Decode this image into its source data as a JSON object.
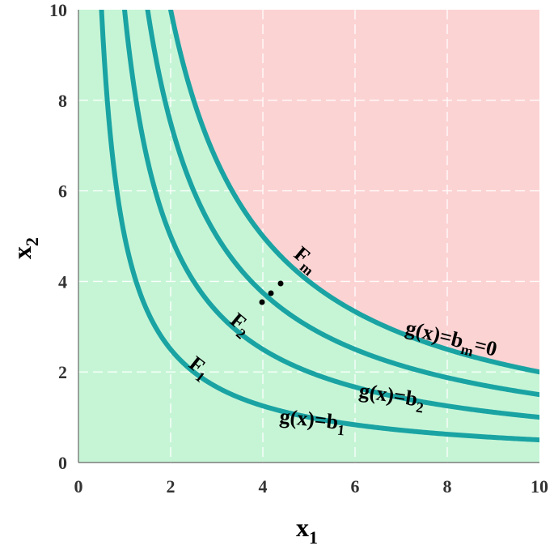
{
  "chart_data": {
    "type": "line",
    "title": "",
    "xlabel": "x",
    "xlabel_sub": "1",
    "ylabel": "x",
    "ylabel_sub": "2",
    "xlim": [
      0,
      10
    ],
    "ylim": [
      0,
      10
    ],
    "xticks": [
      "0",
      "2",
      "4",
      "6",
      "8",
      "10"
    ],
    "yticks": [
      "0",
      "2",
      "4",
      "6",
      "8",
      "10"
    ],
    "grid": true,
    "regions": [
      {
        "name": "feasible",
        "color": "#c6f5d6"
      },
      {
        "name": "infeasible",
        "color": "#fcd3d3"
      }
    ],
    "series": [
      {
        "k": 5,
        "values_note": "x2 = k / x1"
      },
      {
        "k": 10
      },
      {
        "k": 15
      },
      {
        "k": 20
      }
    ],
    "curve_color": "#1aa3a3",
    "dots_color": "#000000",
    "labels": {
      "F1": {
        "main": "F",
        "sub": "1"
      },
      "F2": {
        "main": "F",
        "sub": "2"
      },
      "Fm": {
        "main": "F",
        "sub": "m"
      },
      "g1": {
        "main": "g(x)=b",
        "sub": "1",
        "tail": ""
      },
      "g2": {
        "main": "g(x)=b",
        "sub": "2",
        "tail": ""
      },
      "gm": {
        "main": "g(x)=b",
        "sub": "m",
        "tail": "=0"
      }
    }
  }
}
